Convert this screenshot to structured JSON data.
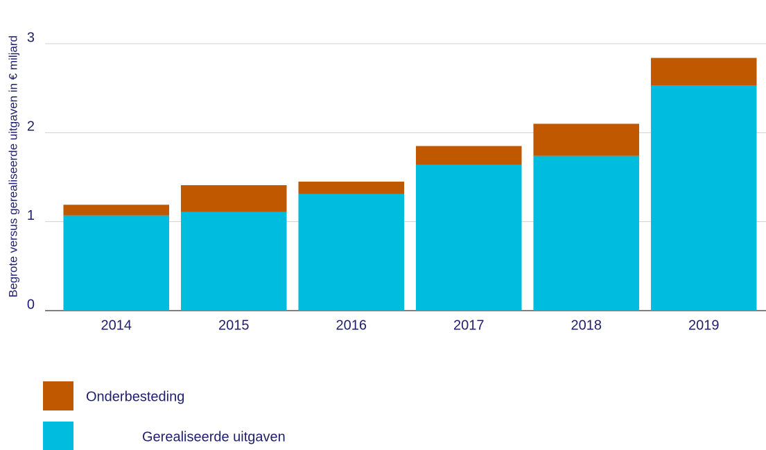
{
  "chart_data": {
    "type": "stacked_bar",
    "ylabel": "Begrote versus gerealiseerde uitgaven in € miljard",
    "categories": [
      "2014",
      "2015",
      "2016",
      "2017",
      "2018",
      "2019"
    ],
    "series": [
      {
        "name": "Gerealiseerde uitgaven",
        "color": "#00bde0",
        "values": [
          1.07,
          1.11,
          1.31,
          1.64,
          1.74,
          2.53
        ]
      },
      {
        "name": "Onderbesteding",
        "color": "#c05800",
        "values": [
          0.12,
          0.3,
          0.14,
          0.21,
          0.36,
          0.31
        ]
      }
    ],
    "ylim": [
      0,
      3
    ],
    "yticks": [
      0,
      1,
      2,
      3
    ],
    "grid": true
  }
}
